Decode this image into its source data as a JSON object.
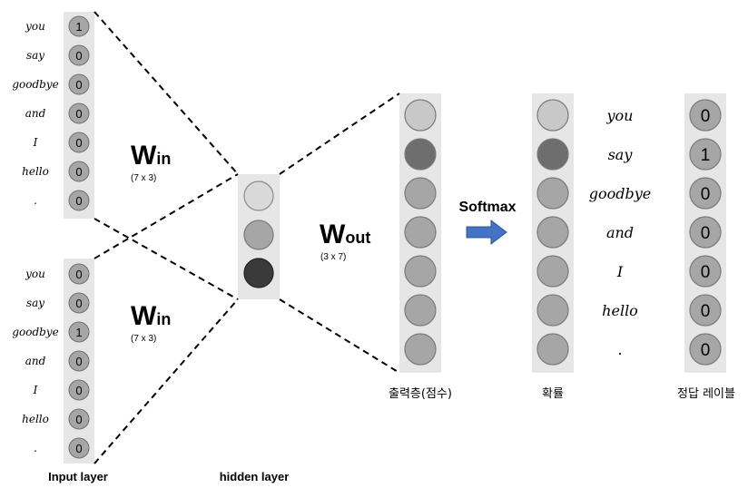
{
  "input_layer_1": {
    "words": [
      "you",
      "say",
      "goodbye",
      "and",
      "I",
      "hello",
      "."
    ],
    "values": [
      "1",
      "0",
      "0",
      "0",
      "0",
      "0",
      "0"
    ]
  },
  "input_layer_2": {
    "words": [
      "you",
      "say",
      "goodbye",
      "and",
      "I",
      "hello",
      "."
    ],
    "values": [
      "0",
      "0",
      "1",
      "0",
      "0",
      "0",
      "0"
    ]
  },
  "w_in": {
    "letter": "W",
    "sub": "in",
    "dims": "(7 x 3)"
  },
  "w_out": {
    "letter": "W",
    "sub": "out",
    "dims": "(3 x 7)"
  },
  "softmax_label": "Softmax",
  "output_words": [
    "you",
    "say",
    "goodbye",
    "and",
    "I",
    "hello",
    "."
  ],
  "answer_values": [
    "0",
    "1",
    "0",
    "0",
    "0",
    "0",
    "0"
  ],
  "labels": {
    "input_layer": "Input layer",
    "hidden_layer": "hidden layer",
    "output_layer": "출력층(점수)",
    "probability": "확률",
    "answer_label": "정답 레이블"
  },
  "colors": {
    "panel": "#e6e6e6",
    "node_gray": "#a6a6a6",
    "node_light": "#c8c8c8",
    "node_lighter": "#d9d9d9",
    "node_dark": "#6e6e6e",
    "node_darkest": "#3a3a3a",
    "arrow": "#4472c4"
  }
}
